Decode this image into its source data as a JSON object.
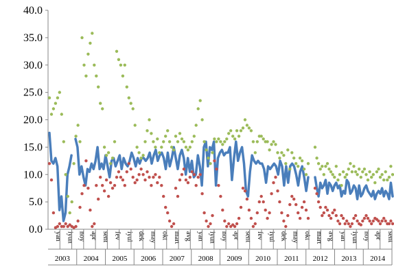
{
  "chart_data": {
    "type": "line",
    "title": "",
    "xlabel": "",
    "ylabel": "",
    "ylim": [
      0,
      40
    ],
    "yticks": [
      "0.0",
      "5.0",
      "10.0",
      "15.0",
      "20.0",
      "25.0",
      "30.0",
      "35.0",
      "40.0"
    ],
    "grid": false,
    "legend": "none",
    "years": [
      "2003",
      "2004",
      "2005",
      "2006",
      "2007",
      "2008",
      "2009",
      "2010",
      "2011",
      "2012",
      "2013",
      "2014"
    ],
    "month_labels": [
      "yan",
      "iyun",
      "noy",
      "apr",
      "sent",
      "fev",
      "iyul",
      "dek",
      "may",
      "okt",
      "mart",
      "avg",
      "yan",
      "iyun",
      "noy",
      "apr",
      "sent",
      "fev",
      "iyul",
      "dek",
      "may",
      "okt",
      "mart",
      "avg",
      "yan",
      "iyun",
      "noy",
      "apr",
      "sent"
    ],
    "series": [
      {
        "style": "line",
        "color": "#4a7ebb",
        "segments": [
          [
            17.6,
            12.5,
            12.0,
            13.0,
            11.5,
            3.5,
            6.0,
            1.5,
            3.0,
            10.0,
            11.5,
            13.5,
            null,
            16.5,
            15.0,
            10.0,
            11.5,
            9.5,
            8.0,
            11.0,
            10.5,
            12.0,
            11.0,
            12.5,
            15.0,
            11.0,
            12.0,
            11.0,
            13.5,
            11.5,
            9.5,
            12.5,
            13.0,
            11.5,
            12.5,
            13.5,
            11.0,
            13.0,
            12.0,
            11.5,
            12.5,
            14.0,
            13.0,
            11.5,
            13.0,
            12.0,
            13.0,
            13.0,
            12.5,
            13.0,
            14.0,
            12.0,
            13.5,
            14.5,
            12.5,
            13.5,
            14.0,
            13.0,
            11.0,
            14.0,
            11.5,
            13.0,
            15.0,
            13.0,
            11.0,
            13.5,
            14.5,
            13.0,
            10.0,
            13.0,
            10.5,
            12.5,
            9.5,
            10.0,
            13.5,
            11.5,
            8.0,
            15.0,
            16.0,
            11.5,
            15.0,
            14.5,
            16.0,
            8.0,
            13.0,
            14.0,
            14.5,
            13.5,
            14.0,
            14.0,
            15.0,
            9.0,
            13.0,
            16.0,
            12.5,
            14.0,
            15.0,
            12.0,
            7.0,
            6.0,
            10.5,
            13.5,
            12.5,
            12.0,
            12.5,
            12.0,
            12.0,
            11.0,
            8.5,
            11.5,
            11.0,
            11.5,
            12.0,
            11.5,
            10.0,
            12.5,
            11.5,
            8.0,
            11.5,
            8.5,
            11.5,
            12.0,
            11.5,
            10.0,
            8.0,
            10.5,
            11.5,
            9.5,
            7.0,
            9.5
          ],
          [
            9.5,
            7.5,
            6.0,
            8.5,
            7.5,
            8.0,
            9.0,
            6.5,
            8.5,
            8.0,
            7.0,
            8.0,
            8.5,
            7.5,
            8.0,
            6.0,
            7.0,
            6.5,
            9.0,
            8.5,
            6.5,
            7.0,
            8.0,
            7.5,
            5.5,
            8.0,
            6.0,
            6.5,
            7.5,
            8.0,
            7.0,
            6.5,
            6.0,
            7.0,
            5.5,
            6.5,
            7.0,
            6.5,
            7.5,
            6.0,
            7.0,
            6.5,
            5.5,
            8.5,
            6.0
          ]
        ]
      },
      {
        "style": "dotted",
        "color": "#9bbb59",
        "segments": [
          [
            24.0,
            21.0,
            22.0,
            23.0,
            24.0,
            25.0,
            21.0,
            16.0,
            10.0,
            6.0,
            3.0,
            5.0,
            12.0,
            17.0,
            19.0,
            16.0,
            35.0,
            30.0,
            28.0,
            32.0,
            34.0,
            35.8,
            30.0,
            28.0,
            26.0,
            23.0,
            22.0,
            15.0,
            13.5,
            14.0,
            12.0,
            13.0,
            16.0,
            32.5,
            31.0,
            30.0,
            28.0,
            30.0,
            26.0,
            24.0,
            23.0,
            22.0,
            19.0,
            15.0,
            14.0,
            13.0,
            13.5,
            16.0,
            18.0,
            20.0,
            17.5,
            16.0,
            15.0,
            16.5,
            14.0,
            15.0,
            16.0,
            17.0,
            18.0,
            16.0,
            15.0,
            14.5,
            17.0,
            16.0,
            17.5,
            16.5,
            16.0,
            15.0,
            14.5,
            15.0,
            16.0,
            17.0,
            19.0,
            22.0,
            23.5,
            20.0,
            16.0,
            14.5,
            13.0,
            12.0,
            14.0,
            16.5,
            16.0,
            16.5,
            16.0,
            15.5,
            16.0,
            16.5,
            17.5,
            18.0,
            17.0,
            16.5,
            18.0,
            17.0,
            18.0,
            18.5,
            20.0,
            19.0,
            18.5,
            18.0,
            16.0,
            14.0,
            16.0,
            17.0,
            17.0,
            16.5,
            16.0,
            16.0,
            14.5,
            15.5,
            16.0,
            15.5,
            14.0,
            13.0,
            14.0,
            13.5,
            12.0,
            14.5,
            11.0,
            14.0,
            13.0,
            12.0,
            11.5,
            13.0,
            12.5,
            11.0,
            10.0,
            12.0
          ],
          [
            15.0,
            13.0,
            12.0,
            11.0,
            11.5,
            10.0,
            11.5,
            12.0,
            11.0,
            10.5,
            10.0,
            9.5,
            11.5,
            9.0,
            10.0,
            8.0,
            10.5,
            9.5,
            10.0,
            11.0,
            12.0,
            10.5,
            11.5,
            10.5,
            10.0,
            11.0,
            9.5,
            10.5,
            11.0,
            10.0,
            9.0,
            10.5,
            9.5,
            10.0,
            8.5,
            10.5,
            11.0,
            9.5,
            10.0,
            9.0,
            10.5,
            9.0,
            9.5,
            11.5,
            10.0
          ]
        ]
      },
      {
        "style": "dotted",
        "color": "#c0504d",
        "segments": [
          [
            12.0,
            9.0,
            3.0,
            0.3,
            0.5,
            1.0,
            0.5,
            0.5,
            1.0,
            0.5,
            0.8,
            0.5,
            0.3,
            0.5,
            1.5,
            4.0,
            6.5,
            8.0,
            12.5,
            7.5,
            3.5,
            0.5,
            1.0,
            8.0,
            5.5,
            9.5,
            8.0,
            7.0,
            9.0,
            6.0,
            8.5,
            7.5,
            8.0,
            9.5,
            10.5,
            9.5,
            9.0,
            8.0,
            10.5,
            12.0,
            11.0,
            9.5,
            8.5,
            9.0,
            10.0,
            11.0,
            10.0,
            9.0,
            10.5,
            9.5,
            8.0,
            9.5,
            10.0,
            8.5,
            9.5,
            8.0,
            6.0,
            4.0,
            3.0,
            1.5,
            0.5,
            1.0,
            7.5,
            6.0,
            9.0,
            10.0,
            11.0,
            9.0,
            8.5,
            9.5,
            10.5,
            10.0,
            8.0,
            9.5,
            10.0,
            6.5,
            3.0,
            1.5,
            0.5,
            1.0,
            2.5,
            12.5,
            11.0,
            8.0,
            6.0,
            3.5,
            1.5,
            0.5,
            1.0,
            0.5,
            0.8,
            0.5,
            1.0,
            2.0,
            4.0,
            7.5,
            7.0,
            5.5,
            3.5,
            2.0,
            0.5,
            1.0,
            3.0,
            5.0,
            6.0,
            5.0,
            3.5,
            2.0,
            3.0,
            6.5,
            8.5,
            9.5,
            7.0,
            5.0,
            3.0,
            1.5,
            0.5,
            2.5,
            4.5,
            6.0,
            5.5,
            4.5,
            3.0,
            2.0,
            4.0,
            5.0,
            3.5,
            2.0
          ],
          [
            7.5,
            6.5,
            5.0,
            4.0,
            2.5,
            3.0,
            4.0,
            3.5,
            2.5,
            2.0,
            3.0,
            3.5,
            2.5,
            1.5,
            1.0,
            2.5,
            2.0,
            1.0,
            1.5,
            1.0,
            0.5,
            1.0,
            2.0,
            2.5,
            1.5,
            1.0,
            0.8,
            1.5,
            2.0,
            2.5,
            2.0,
            1.5,
            1.0,
            1.5,
            2.0,
            1.8,
            1.5,
            1.0,
            1.5,
            2.0,
            1.5,
            1.0,
            1.0,
            1.5,
            1.0
          ]
        ]
      }
    ]
  }
}
